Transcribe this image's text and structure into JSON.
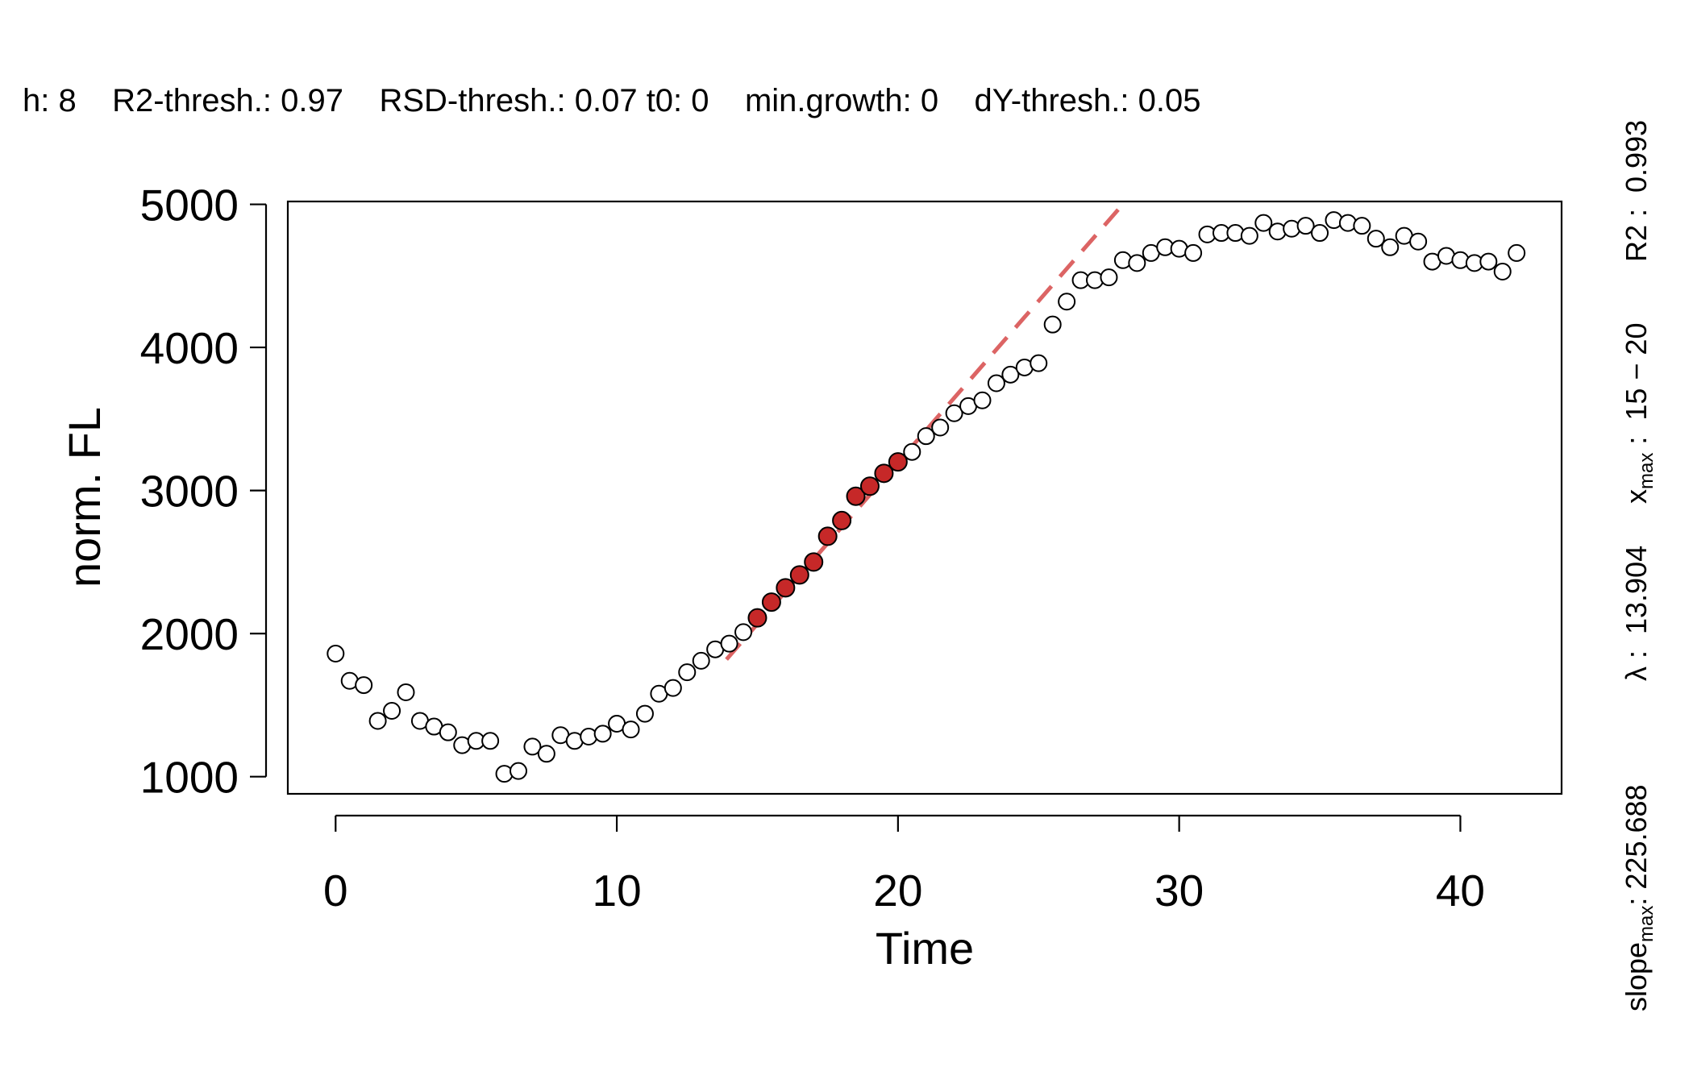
{
  "header": {
    "params_text": "h: 8    R2-thresh.: 0.97    RSD-thresh.: 0.07 t0: 0    min.growth: 0    dY-thresh.: 0.05"
  },
  "side_info": {
    "slope_prefix": "slope",
    "slope_sub": "max",
    "slope_value": ": 225.688",
    "lambda": "λ :  13.904",
    "x_prefix": "x",
    "x_sub": "max",
    "x_value": " :  15 − 20",
    "r2": "R2 :  0.993"
  },
  "colors": {
    "fit_point": "#c62828",
    "fit_line": "#dc6464",
    "open_point": "#000000"
  },
  "chart_data": {
    "type": "scatter",
    "xlabel": "Time",
    "ylabel": "norm. FL",
    "xlim": [
      -1.7,
      43.6
    ],
    "ylim": [
      880,
      5020
    ],
    "x_ticks": [
      0,
      10,
      20,
      30,
      40
    ],
    "y_ticks": [
      1000,
      2000,
      3000,
      4000,
      5000
    ],
    "x_tick_labels": [
      "0",
      "10",
      "20",
      "30",
      "40"
    ],
    "y_tick_labels": [
      "1000",
      "2000",
      "3000",
      "4000",
      "5000"
    ],
    "grid": false,
    "series": [
      {
        "points": [
          [
            0,
            1860
          ],
          [
            0.5,
            1670
          ],
          [
            1,
            1640
          ],
          [
            1.5,
            1390
          ],
          [
            2,
            1460
          ],
          [
            2.5,
            1590
          ],
          [
            3,
            1390
          ],
          [
            3.5,
            1350
          ],
          [
            4,
            1310
          ],
          [
            4.5,
            1220
          ],
          [
            5,
            1250
          ],
          [
            5.5,
            1250
          ],
          [
            6,
            1020
          ],
          [
            6.5,
            1040
          ],
          [
            7,
            1210
          ],
          [
            7.5,
            1160
          ],
          [
            8,
            1290
          ],
          [
            8.5,
            1250
          ],
          [
            9,
            1280
          ],
          [
            9.5,
            1300
          ],
          [
            10,
            1370
          ],
          [
            10.5,
            1330
          ],
          [
            11,
            1440
          ],
          [
            11.5,
            1580
          ],
          [
            12,
            1620
          ],
          [
            12.5,
            1730
          ],
          [
            13,
            1810
          ],
          [
            13.5,
            1890
          ],
          [
            14,
            1930
          ],
          [
            14.5,
            2010
          ],
          [
            15,
            2110
          ],
          [
            15.5,
            2220
          ],
          [
            16,
            2320
          ],
          [
            16.5,
            2410
          ],
          [
            17,
            2500
          ],
          [
            17.5,
            2680
          ],
          [
            18,
            2790
          ],
          [
            18.5,
            2960
          ],
          [
            19,
            3030
          ],
          [
            19.5,
            3120
          ],
          [
            20,
            3200
          ],
          [
            20.5,
            3270
          ],
          [
            21,
            3380
          ],
          [
            21.5,
            3440
          ],
          [
            22,
            3540
          ],
          [
            22.5,
            3590
          ],
          [
            23,
            3630
          ],
          [
            23.5,
            3750
          ],
          [
            24,
            3810
          ],
          [
            24.5,
            3860
          ],
          [
            25,
            3890
          ],
          [
            25.5,
            4160
          ],
          [
            26,
            4320
          ],
          [
            26.5,
            4470
          ],
          [
            27,
            4470
          ],
          [
            27.5,
            4490
          ],
          [
            28,
            4610
          ],
          [
            28.5,
            4590
          ],
          [
            29,
            4660
          ],
          [
            29.5,
            4700
          ],
          [
            30,
            4690
          ],
          [
            30.5,
            4660
          ],
          [
            31,
            4790
          ],
          [
            31.5,
            4800
          ],
          [
            32,
            4800
          ],
          [
            32.5,
            4780
          ],
          [
            33,
            4870
          ],
          [
            33.5,
            4810
          ],
          [
            34,
            4830
          ],
          [
            34.5,
            4850
          ],
          [
            35,
            4800
          ],
          [
            35.5,
            4890
          ],
          [
            36,
            4870
          ],
          [
            36.5,
            4850
          ],
          [
            37,
            4760
          ],
          [
            37.5,
            4700
          ],
          [
            38,
            4780
          ],
          [
            38.5,
            4740
          ],
          [
            39,
            4600
          ],
          [
            39.5,
            4640
          ],
          [
            40,
            4610
          ],
          [
            40.5,
            4590
          ],
          [
            41,
            4600
          ],
          [
            41.5,
            4530
          ],
          [
            42,
            4660
          ]
        ],
        "highlighted_x": [
          15,
          15.5,
          16,
          16.5,
          17,
          17.5,
          18,
          18.5,
          19,
          19.5,
          20
        ]
      }
    ],
    "fit_line": {
      "style": "dashed",
      "slope": 225.688,
      "x_intercept": 13.904,
      "y0": 1820,
      "x_range": [
        13.9,
        28.1
      ]
    }
  }
}
